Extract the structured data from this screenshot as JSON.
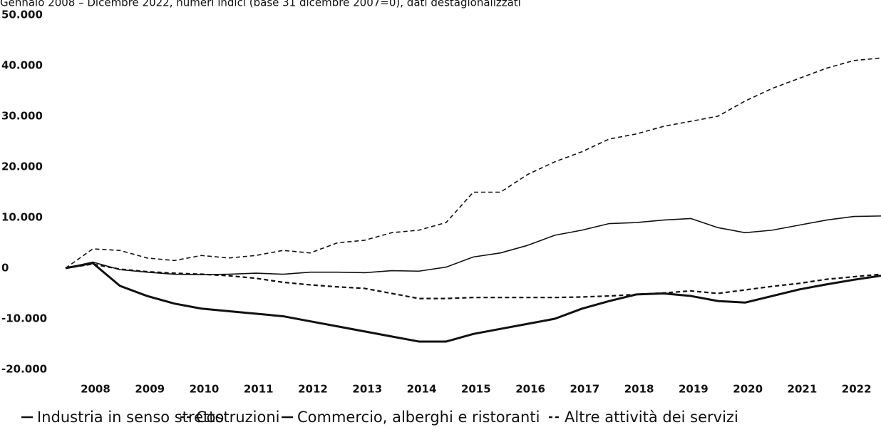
{
  "chart_data": {
    "type": "line",
    "subtitle": "Gennaio 2008 – Dicembre 2022, numeri indici (base 31 dicembre 2007=0), dati destagionalizzati",
    "x": [
      2008,
      2008.5,
      2009,
      2009.5,
      2010,
      2010.5,
      2011,
      2011.5,
      2012,
      2012.5,
      2013,
      2013.5,
      2014,
      2014.5,
      2015,
      2015.5,
      2016,
      2016.5,
      2017,
      2017.5,
      2018,
      2018.5,
      2019,
      2019.5,
      2020,
      2020.5,
      2021,
      2021.5,
      2022,
      2022.5,
      2023
    ],
    "xlim": [
      2008,
      2023
    ],
    "xticks": [
      {
        "value": 2008.55,
        "label": "2008"
      },
      {
        "value": 2009.55,
        "label": "2009"
      },
      {
        "value": 2010.55,
        "label": "2010"
      },
      {
        "value": 2011.55,
        "label": "2011"
      },
      {
        "value": 2012.55,
        "label": "2012"
      },
      {
        "value": 2013.55,
        "label": "2013"
      },
      {
        "value": 2014.55,
        "label": "2014"
      },
      {
        "value": 2015.55,
        "label": "2015"
      },
      {
        "value": 2016.55,
        "label": "2016"
      },
      {
        "value": 2017.55,
        "label": "2017"
      },
      {
        "value": 2018.55,
        "label": "2018"
      },
      {
        "value": 2019.55,
        "label": "2019"
      },
      {
        "value": 2020.55,
        "label": "2020"
      },
      {
        "value": 2021.55,
        "label": "2021"
      },
      {
        "value": 2022.55,
        "label": "2022"
      }
    ],
    "ylim": [
      -20000,
      50000
    ],
    "yticks": [
      {
        "value": 50000,
        "label": "50.000"
      },
      {
        "value": 40000,
        "label": "40.000"
      },
      {
        "value": 30000,
        "label": "30.000"
      },
      {
        "value": 20000,
        "label": "20.000"
      },
      {
        "value": 10000,
        "label": "10.000"
      },
      0,
      {
        "value": -10000,
        "label": "-10.000"
      },
      {
        "value": -20000,
        "label": "-20.000"
      }
    ],
    "grid": false,
    "legend": "bottom",
    "series": [
      {
        "name": "Industria in senso stretto",
        "color": "#111111",
        "dash": false,
        "width": 3,
        "values": [
          0,
          1000,
          -3500,
          -5500,
          -7000,
          -8000,
          -8500,
          -9000,
          -9500,
          -10500,
          -11500,
          -12500,
          -13500,
          -14500,
          -14500,
          -13000,
          -12000,
          -11000,
          -10000,
          -8000,
          -6500,
          -5200,
          -5000,
          -5500,
          -6500,
          -6800,
          -5500,
          -4200,
          -3200,
          -2300,
          -1500
        ]
      },
      {
        "name": "Costruzioni",
        "color": "#111111",
        "dash": true,
        "width": 2.2,
        "values": [
          0,
          800,
          -200,
          -700,
          -1000,
          -1200,
          -1500,
          -2000,
          -2800,
          -3300,
          -3700,
          -4000,
          -5000,
          -6000,
          -6000,
          -5800,
          -5800,
          -5800,
          -5800,
          -5700,
          -5500,
          -5200,
          -4900,
          -4500,
          -5000,
          -4300,
          -3600,
          -3000,
          -2200,
          -1700,
          -1200
        ]
      },
      {
        "name": "Commercio, alberghi e ristoranti",
        "color": "#111111",
        "dash": false,
        "width": 1.6,
        "values": [
          0,
          1200,
          -300,
          -800,
          -1200,
          -1300,
          -1200,
          -1000,
          -1200,
          -800,
          -800,
          -900,
          -500,
          -600,
          200,
          2200,
          3000,
          4500,
          6500,
          7500,
          8800,
          9000,
          9500,
          9800,
          8000,
          7000,
          7500,
          8500,
          9500,
          10200,
          10300
        ]
      },
      {
        "name": "Altre attività dei servizi",
        "color": "#111111",
        "dash": true,
        "width": 1.6,
        "values": [
          0,
          3800,
          3500,
          2000,
          1500,
          2500,
          2000,
          2500,
          3500,
          3000,
          5000,
          5500,
          7000,
          7500,
          9000,
          15000,
          15000,
          18500,
          21000,
          23000,
          25500,
          26500,
          28000,
          29000,
          30000,
          33000,
          35500,
          37500,
          39500,
          41000,
          41500
        ]
      }
    ]
  }
}
